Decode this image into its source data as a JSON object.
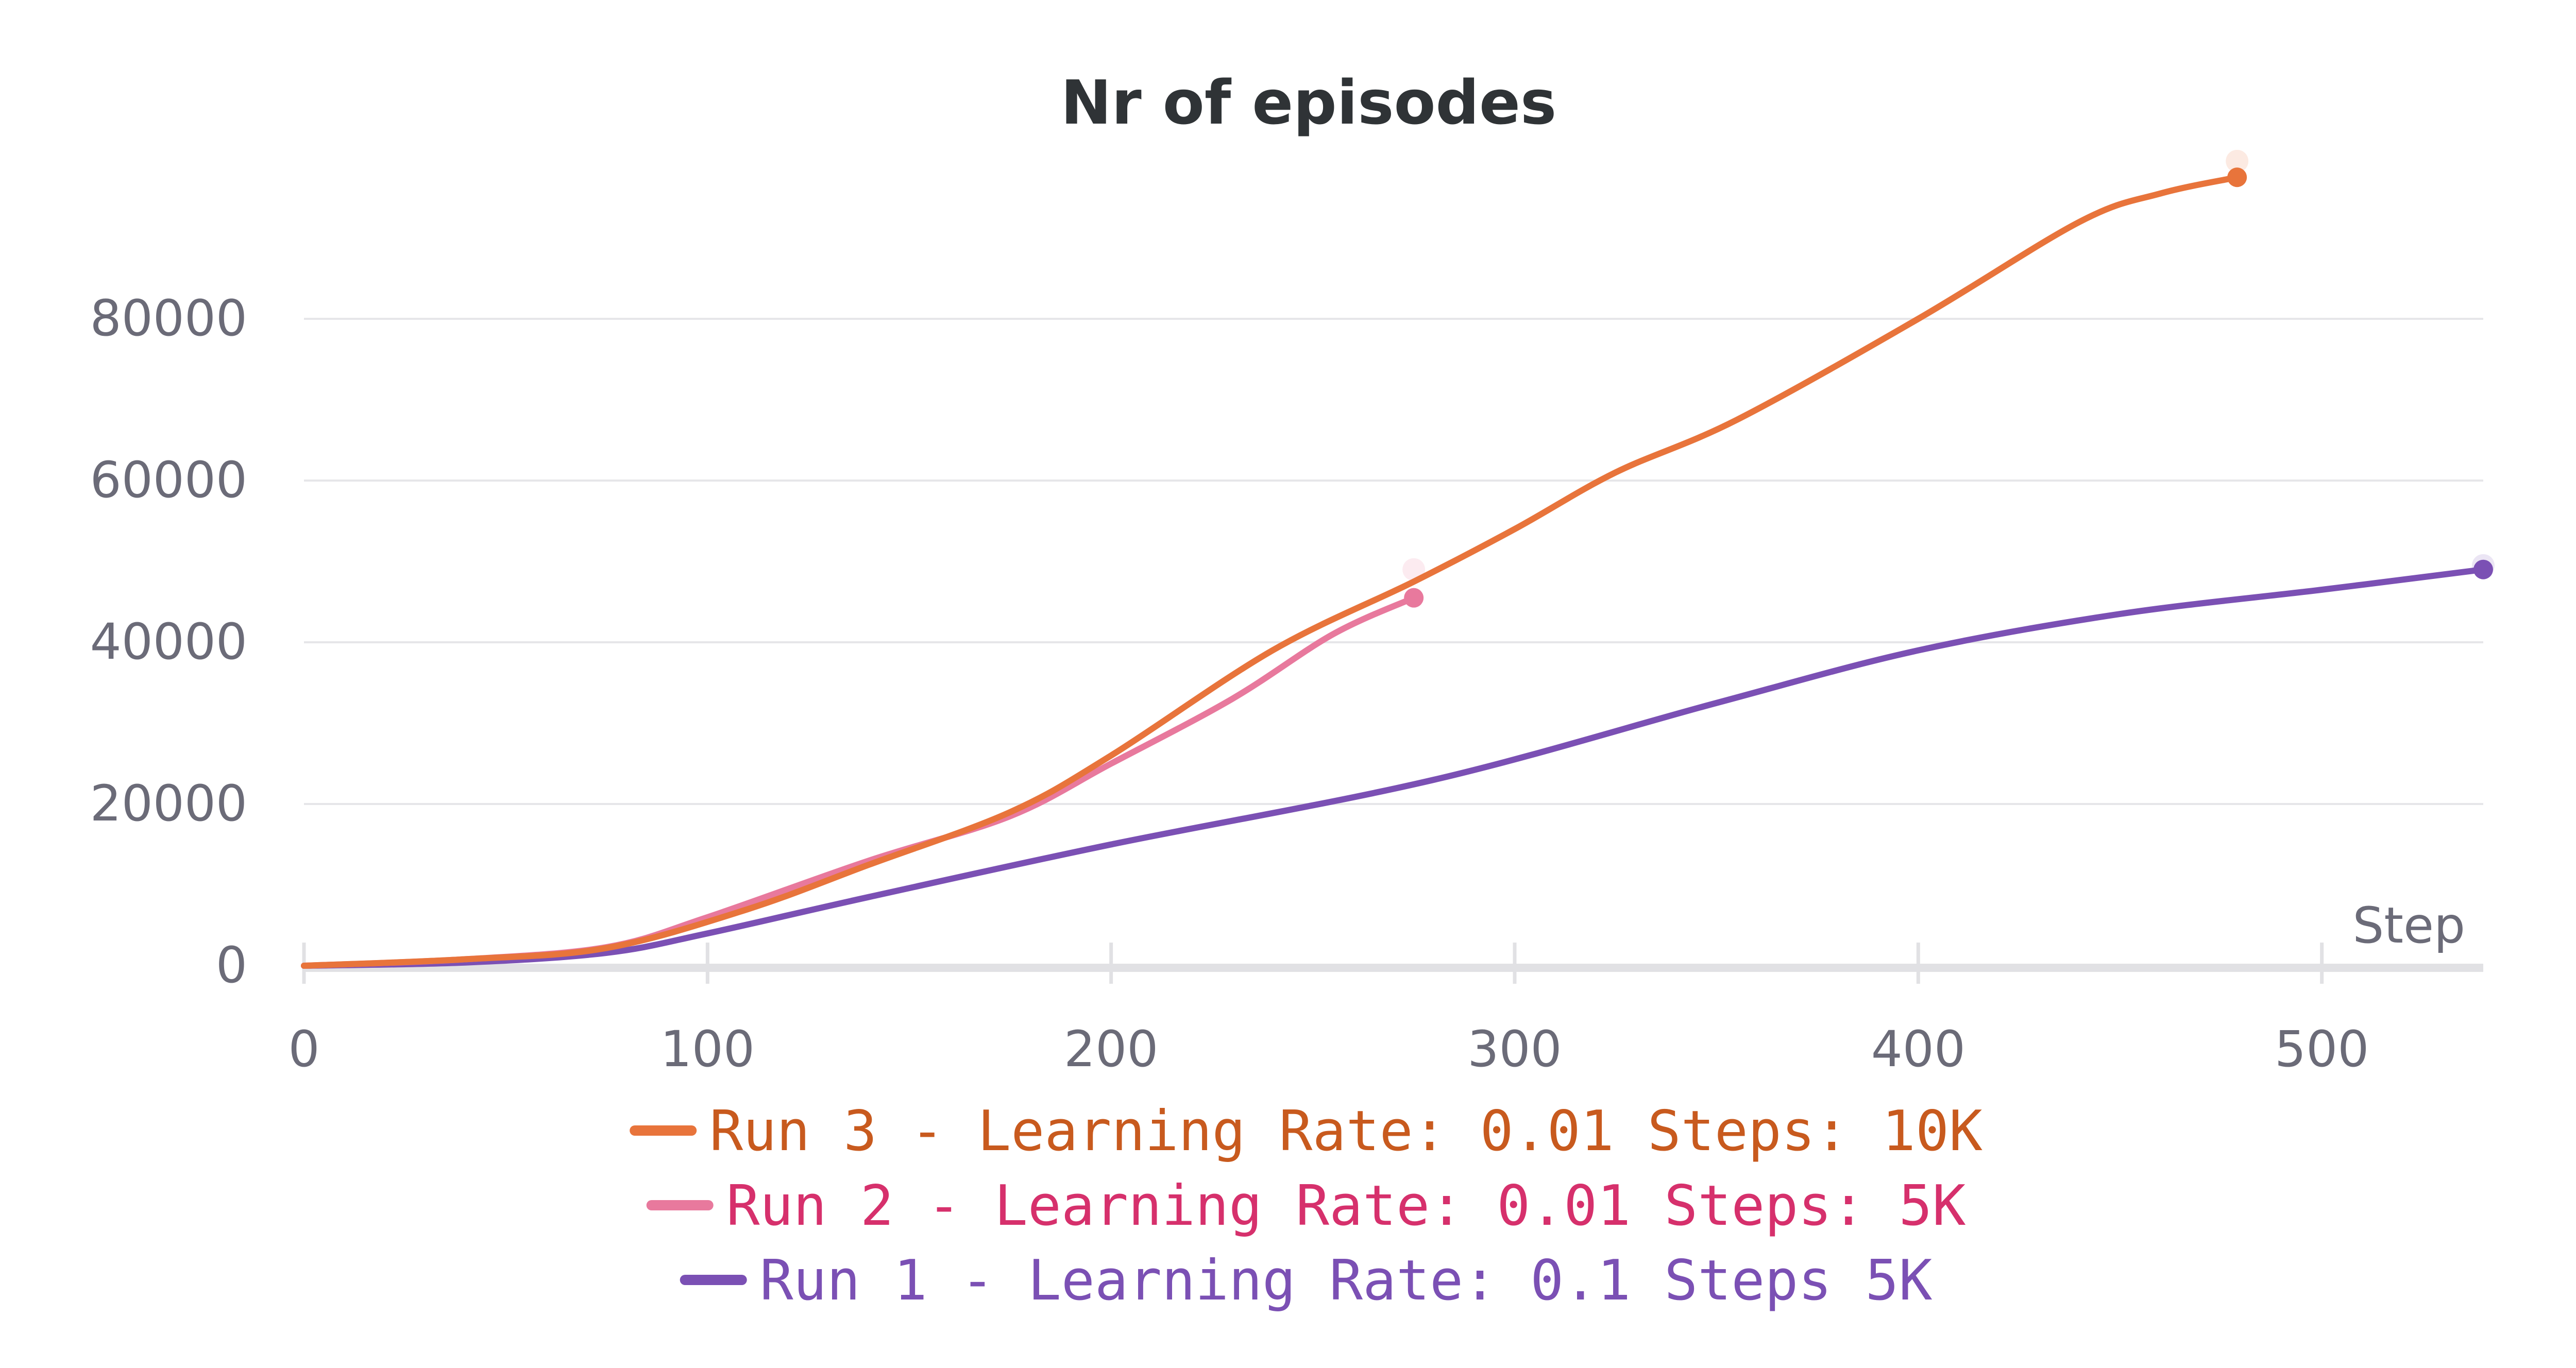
{
  "chart_data": {
    "type": "line",
    "title": "Nr of episodes",
    "xlabel": "Step",
    "ylabel": "",
    "xlim": [
      0,
      540
    ],
    "ylim": [
      0,
      100000
    ],
    "x_ticks": [
      "0",
      "100",
      "200",
      "300",
      "400",
      "500"
    ],
    "y_ticks": [
      "0",
      "20000",
      "40000",
      "60000",
      "80000"
    ],
    "grid": "horizontal",
    "legend_position": "bottom",
    "series": [
      {
        "name": "Run 3 - Learning Rate: 0.01 Steps: 10K",
        "color": "#e8743b",
        "text_color": "#c85a1e",
        "x": [
          0,
          40,
          75,
          110,
          140,
          175,
          200,
          240,
          275,
          300,
          325,
          355,
          400,
          440,
          460,
          479
        ],
        "y": [
          0,
          800,
          2200,
          7000,
          12500,
          19000,
          26000,
          39000,
          47500,
          54000,
          61000,
          67500,
          80000,
          92000,
          95500,
          97500
        ],
        "end_marker": true,
        "faint_end": [
          479,
          99500
        ]
      },
      {
        "name": "Run 2 - Learning Rate: 0.01 Steps: 5K",
        "color": "#e8799d",
        "text_color": "#d6306c",
        "x": [
          0,
          40,
          75,
          100,
          140,
          175,
          200,
          230,
          255,
          275
        ],
        "y": [
          0,
          800,
          2300,
          6000,
          13000,
          18500,
          25000,
          33000,
          41000,
          45500
        ],
        "end_marker": true,
        "faint_end": [
          275,
          49000
        ]
      },
      {
        "name": "Run 1 - Learning Rate: 0.1 Steps 5K",
        "color": "#7b50b4",
        "text_color": "#7b50b4",
        "x": [
          0,
          40,
          75,
          100,
          140,
          200,
          280,
          350,
          400,
          450,
          500,
          540
        ],
        "y": [
          0,
          400,
          1600,
          4000,
          8500,
          15000,
          23000,
          32500,
          39000,
          43500,
          46500,
          49000
        ],
        "end_marker": true,
        "faint_end": [
          540,
          49500
        ]
      }
    ]
  }
}
